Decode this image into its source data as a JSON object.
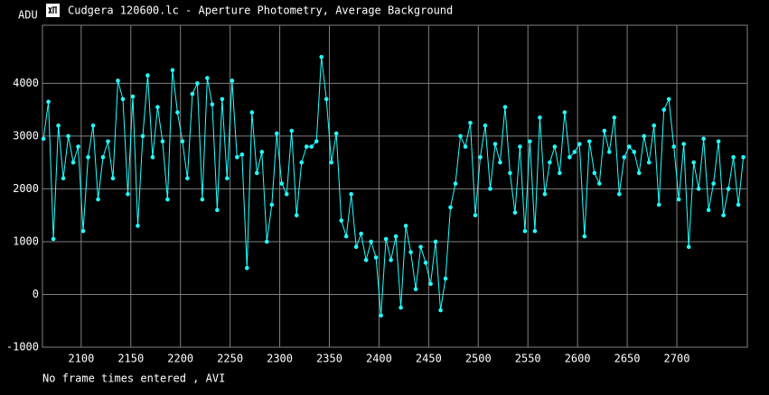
{
  "chart_data": {
    "type": "line",
    "title": "Cudgera 120600.lc - Aperture Photometry, Average Background",
    "ylabel": "ADU",
    "footer": "No frame times entered , AVI",
    "color": "#22ffff",
    "grid": true,
    "xlim": [
      2061,
      2771
    ],
    "ylim": [
      -1000,
      5100
    ],
    "xticks": [
      2100,
      2150,
      2200,
      2250,
      2300,
      2350,
      2400,
      2450,
      2500,
      2550,
      2600,
      2650,
      2700
    ],
    "yticks": [
      -1000,
      0,
      1000,
      2000,
      3000,
      4000
    ],
    "x": [
      2062,
      2067,
      2072,
      2077,
      2082,
      2087,
      2092,
      2097,
      2102,
      2107,
      2112,
      2117,
      2122,
      2127,
      2132,
      2137,
      2142,
      2147,
      2152,
      2157,
      2162,
      2167,
      2172,
      2177,
      2182,
      2187,
      2192,
      2197,
      2202,
      2207,
      2212,
      2217,
      2222,
      2227,
      2232,
      2237,
      2242,
      2247,
      2252,
      2257,
      2262,
      2267,
      2272,
      2277,
      2282,
      2287,
      2292,
      2297,
      2302,
      2307,
      2312,
      2317,
      2322,
      2327,
      2332,
      2337,
      2342,
      2347,
      2352,
      2357,
      2362,
      2367,
      2372,
      2377,
      2382,
      2387,
      2392,
      2397,
      2402,
      2407,
      2412,
      2417,
      2422,
      2427,
      2432,
      2437,
      2442,
      2447,
      2452,
      2457,
      2462,
      2467,
      2472,
      2477,
      2482,
      2487,
      2492,
      2497,
      2502,
      2507,
      2512,
      2517,
      2522,
      2527,
      2532,
      2537,
      2542,
      2547,
      2552,
      2557,
      2562,
      2567,
      2572,
      2577,
      2582,
      2587,
      2592,
      2597,
      2602,
      2607,
      2612,
      2617,
      2622,
      2627,
      2632,
      2637,
      2642,
      2647,
      2652,
      2657,
      2662,
      2667,
      2672,
      2677,
      2682,
      2687,
      2692,
      2697,
      2702,
      2707,
      2712,
      2717,
      2722,
      2727,
      2732,
      2737,
      2742,
      2747,
      2752,
      2757,
      2762,
      2767
    ],
    "values": [
      2950,
      3650,
      1050,
      3200,
      2200,
      3000,
      2500,
      2800,
      1200,
      2600,
      3200,
      1800,
      2600,
      2900,
      2200,
      4050,
      3700,
      1900,
      3750,
      1300,
      3000,
      4150,
      2600,
      3550,
      2900,
      1800,
      4250,
      3450,
      2900,
      2200,
      3800,
      4000,
      1800,
      4100,
      3600,
      1600,
      3700,
      2200,
      4050,
      2600,
      2650,
      500,
      3450,
      2300,
      2700,
      1000,
      1700,
      3050,
      2100,
      1900,
      3100,
      1500,
      2500,
      2800,
      2800,
      2900,
      4500,
      3700,
      2500,
      3050,
      1400,
      1100,
      1900,
      900,
      1150,
      650,
      1000,
      700,
      -400,
      1050,
      650,
      1100,
      -250,
      1300,
      800,
      100,
      900,
      600,
      200,
      1000,
      -300,
      300,
      1650,
      2100,
      3000,
      2800,
      3250,
      1500,
      2600,
      3200,
      2000,
      2850,
      2500,
      3550,
      2300,
      1550,
      2800,
      1200,
      2900,
      1200,
      3350,
      1900,
      2500,
      2800,
      2300,
      3450,
      2600,
      2700,
      2850,
      1100,
      2900,
      2300,
      2100,
      3100,
      2700,
      3350,
      1900,
      2600,
      2800,
      2700,
      2300,
      3000,
      2500,
      3200,
      1700,
      3500,
      3700,
      2800,
      1800,
      2850,
      900,
      2500,
      2000,
      2950,
      1600,
      2100,
      2900,
      1500,
      2000,
      2600,
      1700,
      2600
    ]
  }
}
